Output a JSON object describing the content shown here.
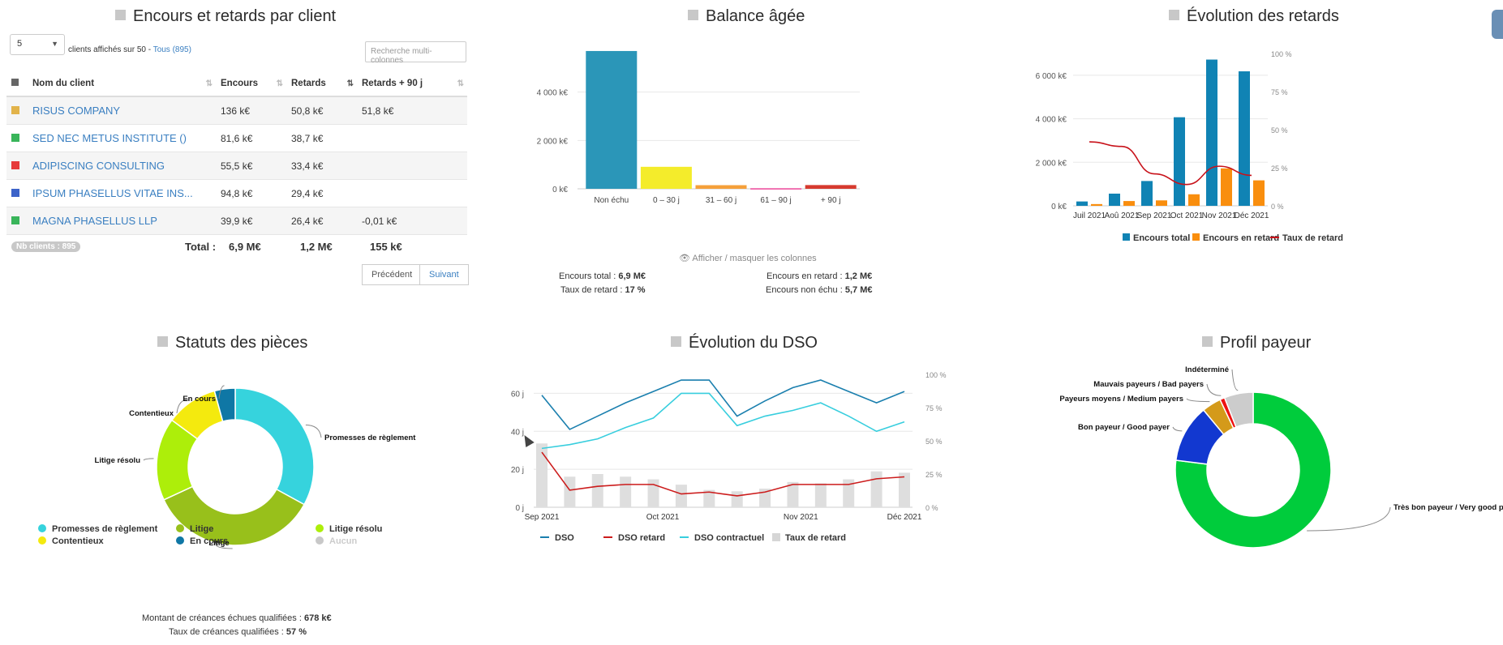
{
  "panels": {
    "encours": {
      "title": "Encours et retards par client",
      "page_size": "5",
      "shown_text": "clients affichés sur 50 - ",
      "all_link": "Tous (895)",
      "search_placeholder": "Recherche multi-colonnes",
      "columns": [
        "Nom du client",
        "Encours",
        "Retards",
        "Retards + 90 j"
      ],
      "rows": [
        {
          "flag_color": "#e2b34a",
          "name": "RISUS COMPANY",
          "encours": "136 k€",
          "retards": "50,8 k€",
          "retards90": "51,8 k€"
        },
        {
          "flag_color": "#39b55a",
          "name": "SED NEC METUS INSTITUTE ()",
          "encours": "81,6 k€",
          "retards": "38,7 k€",
          "retards90": ""
        },
        {
          "flag_color": "#e63b3b",
          "name": "ADIPISCING CONSULTING",
          "encours": "55,5 k€",
          "retards": "33,4 k€",
          "retards90": ""
        },
        {
          "flag_color": "#3c63c9",
          "name": "IPSUM PHASELLUS VITAE INS...",
          "encours": "94,8 k€",
          "retards": "29,4 k€",
          "retards90": ""
        },
        {
          "flag_color": "#39b55a",
          "name": "MAGNA PHASELLUS LLP",
          "encours": "39,9 k€",
          "retards": "26,4 k€",
          "retards90": "-0,01 k€"
        }
      ],
      "nb_clients": "Nb clients : 895",
      "total_label": "Total :",
      "total_encours": "6,9 M€",
      "total_retards": "1,2 M€",
      "total_retards90": "155 k€",
      "prev_label": "Précédent",
      "next_label": "Suivant"
    },
    "balance": {
      "title": "Balance âgée",
      "toggle_label": "Afficher / masquer les colonnes",
      "stats": {
        "encours_total_label": "Encours total : ",
        "encours_total": "6,9 M€",
        "taux_label": "Taux de retard : ",
        "taux": "17 %",
        "encours_retard_label": "Encours en retard : ",
        "encours_retard": "1,2 M€",
        "encours_non_echu_label": "Encours non échu : ",
        "encours_non_echu": "5,7 M€"
      }
    },
    "evol_retards": {
      "title": "Évolution des retards"
    },
    "statuts": {
      "title": "Statuts des pièces",
      "montant_label": "Montant de créances échues qualifiées : ",
      "montant": "678 k€",
      "taux_label": "Taux de créances qualifiées : ",
      "taux": "57 %"
    },
    "dso": {
      "title": "Évolution du DSO"
    },
    "profil": {
      "title": "Profil payeur"
    }
  },
  "chart_data": [
    {
      "id": "balance",
      "type": "bar",
      "categories": [
        "Non échu",
        "0 – 30 j",
        "31 – 60 j",
        "61 – 90 j",
        "+ 90 j"
      ],
      "values": [
        5700,
        910,
        150,
        30,
        155
      ],
      "colors": [
        "#2b96b8",
        "#f4ec2b",
        "#f5a03a",
        "#f070b0",
        "#d63a2f"
      ],
      "ylim": [
        0,
        6000
      ],
      "yticks": [
        0,
        2000,
        4000
      ],
      "ytick_labels": [
        "0 k€",
        "2 000 k€",
        "4 000 k€"
      ]
    },
    {
      "id": "evol_retards",
      "type": "bar",
      "categories": [
        "Juil 2021",
        "Aoû 2021",
        "Sep 2021",
        "Oct 2021",
        "Nov 2021",
        "Déc 2021"
      ],
      "series": [
        {
          "name": "Encours total",
          "type": "bar",
          "color": "#1083b4",
          "values": [
            200,
            560,
            1140,
            4070,
            6720,
            6180
          ]
        },
        {
          "name": "Encours en retard",
          "type": "bar",
          "color": "#f98e0e",
          "values": [
            80,
            220,
            250,
            530,
            1720,
            1170
          ]
        },
        {
          "name": "Taux de retard",
          "type": "line",
          "axis": "right",
          "color": "#c8121a",
          "values": [
            42,
            39,
            21,
            14,
            26,
            20
          ]
        }
      ],
      "ylim": [
        0,
        7000
      ],
      "yticks": [
        0,
        2000,
        4000,
        6000
      ],
      "ytick_labels": [
        "0 k€",
        "2 000 k€",
        "4 000 k€",
        "6 000 k€"
      ],
      "y2lim": [
        0,
        100
      ],
      "y2ticks": [
        0,
        25,
        50,
        75,
        100
      ],
      "y2tick_labels": [
        "0 %",
        "25 %",
        "50 %",
        "75 %",
        "100 %"
      ]
    },
    {
      "id": "statuts",
      "type": "pie",
      "labels": [
        "Promesses de règlement",
        "Litige",
        "Litige résolu",
        "Contentieux",
        "En cours",
        "Aucun"
      ],
      "values": [
        31,
        33,
        16,
        10,
        4,
        0
      ],
      "colors": [
        "#36d3dd",
        "#98c01b",
        "#adee0a",
        "#f4ea0e",
        "#0f77a5",
        "#c8c8c8"
      ]
    },
    {
      "id": "dso",
      "type": "line",
      "x_labels": [
        "Sep 2021",
        "Oct 2021",
        "Nov 2021",
        "Déc 2021"
      ],
      "x_label_positions": [
        0,
        7,
        15,
        21
      ],
      "series": [
        {
          "name": "DSO",
          "type": "line",
          "color": "#1a7fae",
          "values": [
            59,
            41,
            48,
            55,
            61,
            67,
            67,
            48,
            56,
            63,
            67,
            61,
            55,
            61
          ]
        },
        {
          "name": "DSO retard",
          "type": "line",
          "color": "#cc1c1c",
          "values": [
            29,
            9,
            11,
            12,
            12,
            7,
            8,
            6,
            8,
            12,
            12,
            12,
            15,
            16
          ]
        },
        {
          "name": "DSO contractuel",
          "type": "line",
          "color": "#38cede",
          "values": [
            31,
            33,
            36,
            42,
            47,
            60,
            60,
            43,
            48,
            51,
            55,
            48,
            40,
            45
          ]
        },
        {
          "name": "Taux de retard",
          "type": "bar",
          "axis": "right",
          "color": "#dedede",
          "values": [
            48,
            23,
            25,
            23,
            21,
            17,
            13,
            12,
            14,
            19,
            18,
            21,
            27,
            26
          ]
        }
      ],
      "ylim": [
        0,
        70
      ],
      "yticks": [
        0,
        20,
        40,
        60
      ],
      "ytick_labels": [
        "0 j",
        "20 j",
        "40 j",
        "60 j"
      ],
      "y2lim": [
        0,
        100
      ],
      "y2ticks": [
        0,
        25,
        50,
        75,
        100
      ],
      "y2tick_labels": [
        "0 %",
        "25 %",
        "50 %",
        "75 %",
        "100 %"
      ]
    },
    {
      "id": "profil",
      "type": "pie",
      "labels": [
        "Très bon payeur / Very good payer",
        "Bon payeur / Good payer",
        "Payeurs moyens / Medium payers",
        "Mauvais payeurs / Bad payers",
        "Indéterminé"
      ],
      "values": [
        77,
        12,
        4,
        1,
        6
      ],
      "colors": [
        "#00cc3c",
        "#1238d0",
        "#d49a1a",
        "#ee1111",
        "#cccccc"
      ]
    }
  ]
}
